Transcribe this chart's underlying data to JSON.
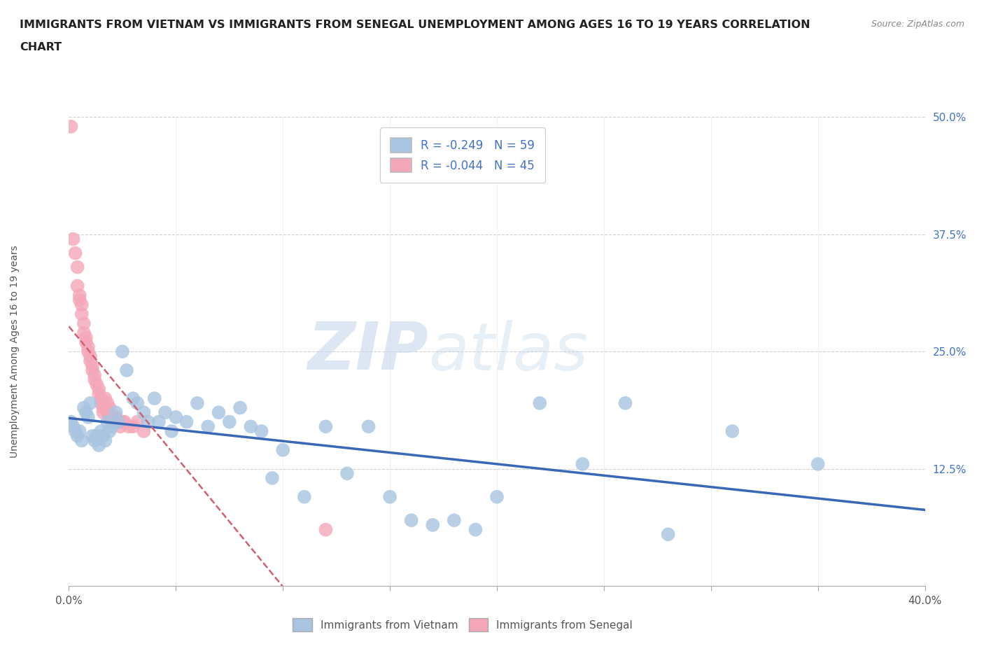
{
  "title_line1": "IMMIGRANTS FROM VIETNAM VS IMMIGRANTS FROM SENEGAL UNEMPLOYMENT AMONG AGES 16 TO 19 YEARS CORRELATION",
  "title_line2": "CHART",
  "source": "Source: ZipAtlas.com",
  "ylabel": "Unemployment Among Ages 16 to 19 years",
  "xlim": [
    0.0,
    0.4
  ],
  "ylim": [
    0.0,
    0.5
  ],
  "yticks_right": [
    0.125,
    0.25,
    0.375,
    0.5
  ],
  "ytick_labels_right": [
    "12.5%",
    "25.0%",
    "37.5%",
    "50.0%"
  ],
  "legend_vietnam": "Immigrants from Vietnam",
  "legend_senegal": "Immigrants from Senegal",
  "R_vietnam": -0.249,
  "N_vietnam": 59,
  "R_senegal": -0.044,
  "N_senegal": 45,
  "color_vietnam": "#a8c4e0",
  "color_senegal": "#f4a7b9",
  "line_color_vietnam": "#3a68b8",
  "line_color_senegal": "#d06070",
  "background_color": "#ffffff",
  "watermark_zip": "ZIP",
  "watermark_atlas": "atlas",
  "vietnam_x": [
    0.001,
    0.002,
    0.003,
    0.004,
    0.005,
    0.006,
    0.007,
    0.008,
    0.009,
    0.01,
    0.011,
    0.012,
    0.013,
    0.014,
    0.015,
    0.016,
    0.017,
    0.018,
    0.019,
    0.02,
    0.022,
    0.023,
    0.025,
    0.027,
    0.03,
    0.032,
    0.035,
    0.037,
    0.04,
    0.042,
    0.045,
    0.048,
    0.05,
    0.055,
    0.06,
    0.065,
    0.07,
    0.075,
    0.08,
    0.085,
    0.09,
    0.095,
    0.1,
    0.11,
    0.12,
    0.13,
    0.14,
    0.15,
    0.16,
    0.17,
    0.18,
    0.19,
    0.2,
    0.22,
    0.24,
    0.26,
    0.28,
    0.31,
    0.35
  ],
  "vietnam_y": [
    0.175,
    0.17,
    0.165,
    0.16,
    0.165,
    0.155,
    0.19,
    0.185,
    0.18,
    0.195,
    0.16,
    0.155,
    0.16,
    0.15,
    0.165,
    0.16,
    0.155,
    0.175,
    0.165,
    0.17,
    0.185,
    0.175,
    0.25,
    0.23,
    0.2,
    0.195,
    0.185,
    0.175,
    0.2,
    0.175,
    0.185,
    0.165,
    0.18,
    0.175,
    0.195,
    0.17,
    0.185,
    0.175,
    0.19,
    0.17,
    0.165,
    0.115,
    0.145,
    0.095,
    0.17,
    0.12,
    0.17,
    0.095,
    0.07,
    0.065,
    0.07,
    0.06,
    0.095,
    0.195,
    0.13,
    0.195,
    0.055,
    0.165,
    0.13
  ],
  "senegal_x": [
    0.001,
    0.002,
    0.003,
    0.004,
    0.004,
    0.005,
    0.005,
    0.006,
    0.006,
    0.007,
    0.007,
    0.008,
    0.008,
    0.009,
    0.009,
    0.01,
    0.01,
    0.011,
    0.011,
    0.012,
    0.012,
    0.013,
    0.014,
    0.014,
    0.015,
    0.015,
    0.016,
    0.016,
    0.017,
    0.018,
    0.018,
    0.019,
    0.019,
    0.02,
    0.021,
    0.022,
    0.023,
    0.024,
    0.025,
    0.026,
    0.028,
    0.03,
    0.032,
    0.035,
    0.12
  ],
  "senegal_y": [
    0.49,
    0.37,
    0.355,
    0.34,
    0.32,
    0.31,
    0.305,
    0.3,
    0.29,
    0.28,
    0.27,
    0.265,
    0.26,
    0.255,
    0.25,
    0.245,
    0.24,
    0.235,
    0.23,
    0.225,
    0.22,
    0.215,
    0.21,
    0.205,
    0.2,
    0.195,
    0.19,
    0.185,
    0.2,
    0.195,
    0.185,
    0.19,
    0.18,
    0.175,
    0.18,
    0.18,
    0.175,
    0.17,
    0.175,
    0.175,
    0.17,
    0.17,
    0.175,
    0.165,
    0.06
  ]
}
